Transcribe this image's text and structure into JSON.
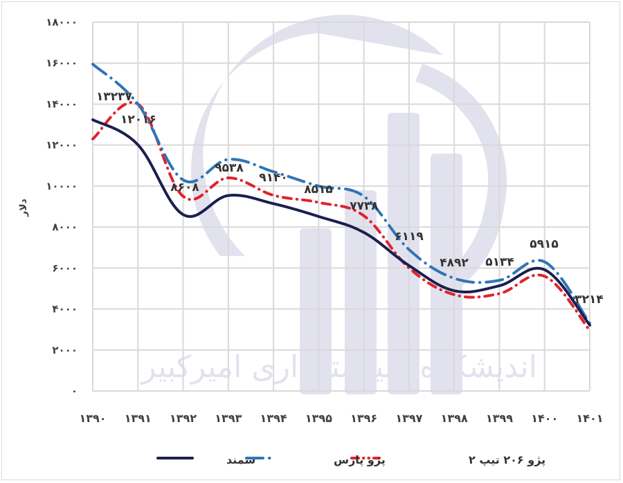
{
  "chart_data": {
    "type": "line",
    "title": "",
    "xlabel": "",
    "ylabel": "دلار",
    "ylim": [
      0,
      18000
    ],
    "grid": true,
    "legend_position": "bottom",
    "categories": [
      "۱۳۹۰",
      "۱۳۹۱",
      "۱۳۹۲",
      "۱۳۹۳",
      "۱۳۹۴",
      "۱۳۹۵",
      "۱۳۹۶",
      "۱۳۹۷",
      "۱۳۹۸",
      "۱۳۹۹",
      "۱۴۰۰",
      "۱۴۰۱"
    ],
    "x": [
      1390,
      1391,
      1392,
      1393,
      1394,
      1395,
      1396,
      1397,
      1398,
      1399,
      1400,
      1401
    ],
    "y_ticks": [
      0,
      2000,
      4000,
      6000,
      8000,
      10000,
      12000,
      14000,
      16000,
      18000
    ],
    "y_tick_labels": [
      "۰",
      "۲۰۰۰",
      "۴۰۰۰",
      "۶۰۰۰",
      "۸۰۰۰",
      "۱۰۰۰۰",
      "۱۲۰۰۰",
      "۱۴۰۰۰",
      "۱۶۰۰۰",
      "۱۸۰۰۰"
    ],
    "series": [
      {
        "name": "سمند",
        "color": "#1b1f4f",
        "style": "solid",
        "values": [
          13237,
          12016,
          8608,
          9538,
          9140,
          8515,
          7738,
          6119,
          4892,
          5134,
          5915,
          3214
        ],
        "data_labels": [
          "۱۳۲۳۷",
          "۱۲۰۱۶",
          "۸۶۰۸",
          "۹۵۳۸",
          "۹۱۴۰",
          "۸۵۱۵",
          "۷۷۳۸",
          "۶۱۱۹",
          "۴۸۹۲",
          "۵۱۳۴",
          "۵۹۱۵",
          "۳۲۱۴"
        ]
      },
      {
        "name": "پژو پارس",
        "color": "#2e75b6",
        "style": "dash-dot",
        "values": [
          15950,
          14000,
          10300,
          11300,
          10700,
          10000,
          9500,
          6900,
          5500,
          5400,
          6300,
          3300
        ]
      },
      {
        "name": "پژو ۲۰۶ تیپ ۲",
        "color": "#e0222b",
        "style": "dash-dot-dot",
        "values": [
          12300,
          14000,
          9500,
          10400,
          9550,
          9200,
          8550,
          6000,
          4700,
          4750,
          5600,
          2950
        ]
      }
    ],
    "annotations": [
      {
        "text": "۱۳۲۳۷",
        "x": 1390
      },
      {
        "text": "۱۲۰۱۶",
        "x": 1391
      },
      {
        "text": "۸۶۰۸",
        "x": 1392
      },
      {
        "text": "۹۵۳۸",
        "x": 1393
      },
      {
        "text": "۹۱۴۰",
        "x": 1394
      },
      {
        "text": "۸۵۱۵",
        "x": 1395
      },
      {
        "text": "۷۷۳۸",
        "x": 1396
      },
      {
        "text": "۶۱۱۹",
        "x": 1397
      },
      {
        "text": "۴۸۹۲",
        "x": 1398
      },
      {
        "text": "۵۱۳۴",
        "x": 1399
      },
      {
        "text": "۵۹۱۵",
        "x": 1400
      },
      {
        "text": "۳۲۱۴",
        "x": 1401
      }
    ]
  },
  "watermark": {
    "text": "اندیشکده سیاستگذاری امیرکبیر",
    "color": "#e2e2ee"
  },
  "legend": {
    "items": [
      {
        "label": "سمند",
        "color": "#1b1f4f"
      },
      {
        "label": "پژو پارس",
        "color": "#2e75b6"
      },
      {
        "label": "پژو ۲۰۶ تیپ ۲",
        "color": "#e0222b"
      }
    ]
  },
  "colors": {
    "grid": "#d9d9d9",
    "axis_text": "#404040",
    "background": "#ffffff"
  }
}
